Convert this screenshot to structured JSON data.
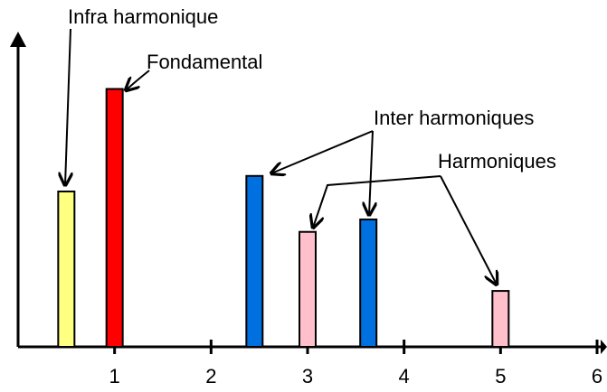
{
  "chart_data": {
    "type": "bar",
    "x": [
      0.5,
      1,
      2.45,
      3,
      3.63,
      5
    ],
    "values": [
      5.0,
      8.3,
      5.5,
      3.7,
      4.1,
      1.8
    ],
    "colors": [
      "#ffff80",
      "#ff0000",
      "#0070e0",
      "#ffc0cb",
      "#0070e0",
      "#ffc0cb"
    ],
    "xlim": [
      0,
      6
    ],
    "xticks": [
      1,
      2,
      3,
      4,
      5,
      6
    ],
    "ylim": [
      0,
      10
    ],
    "annotations": [
      "Infra harmonique",
      "Fondamental",
      "Inter harmoniques",
      "Harmoniques"
    ]
  }
}
